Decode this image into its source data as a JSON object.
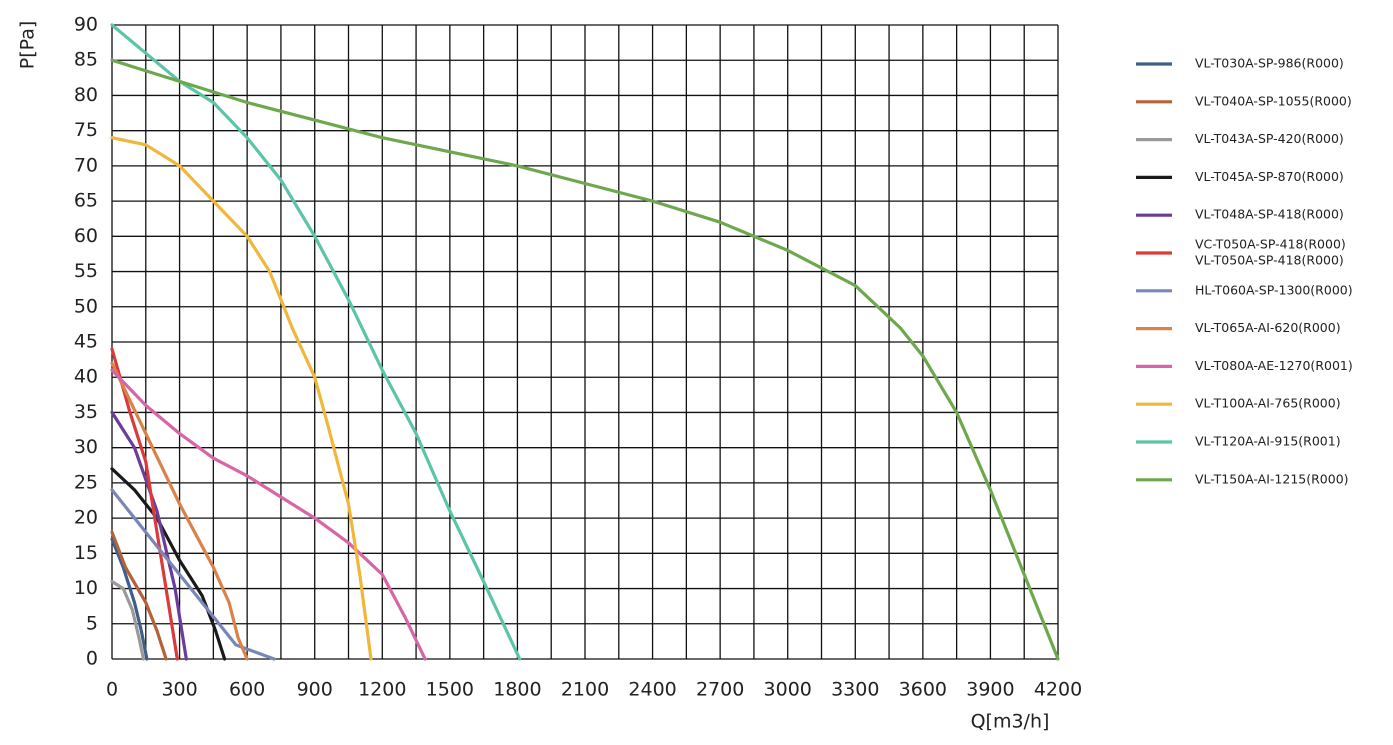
{
  "chart_data": {
    "type": "line",
    "y_label": "P[Pa]",
    "x_label": "Q[m3/h]",
    "xlim": [
      0,
      4200
    ],
    "xticks": [
      0,
      300,
      600,
      900,
      1200,
      1500,
      1800,
      2100,
      2400,
      2700,
      3000,
      3300,
      3600,
      3900,
      4200
    ],
    "x_minor_grid": [
      150,
      450,
      750,
      1050,
      1350,
      1650,
      1950,
      2250,
      2550,
      2850,
      3150,
      3450,
      3750,
      4050
    ],
    "ylim": [
      0,
      90
    ],
    "yticks": [
      0,
      5,
      10,
      15,
      20,
      25,
      30,
      35,
      40,
      45,
      50,
      55,
      60,
      65,
      70,
      75,
      80,
      85,
      90
    ],
    "grid": true,
    "legend": "right",
    "series": [
      {
        "name": [
          "VL-T030A-SP-986(R000)"
        ],
        "color": "#3e5f8a",
        "x": [
          0,
          50,
          100,
          130,
          155
        ],
        "values": [
          17,
          13,
          8,
          4,
          0
        ]
      },
      {
        "name": [
          "VL-T040A-SP-1055(R000)"
        ],
        "color": "#b5623a",
        "x": [
          0,
          60,
          150,
          200,
          240
        ],
        "values": [
          18,
          13,
          8,
          4,
          0
        ]
      },
      {
        "name": [
          "VL-T043A-SP-420(R000)"
        ],
        "color": "#9a9a9a",
        "x": [
          0,
          50,
          90,
          120,
          140
        ],
        "values": [
          11,
          10,
          7,
          3,
          0
        ]
      },
      {
        "name": [
          "VL-T045A-SP-870(R000)"
        ],
        "color": "#1a1a1a",
        "x": [
          0,
          100,
          200,
          300,
          400,
          460,
          500
        ],
        "values": [
          27,
          24,
          20,
          14,
          9,
          4,
          0
        ]
      },
      {
        "name": [
          "VL-T048A-SP-418(R000)"
        ],
        "color": "#6a3d9a",
        "x": [
          0,
          100,
          200,
          280,
          310,
          330
        ],
        "values": [
          35,
          30,
          21,
          10,
          4,
          0
        ]
      },
      {
        "name": [
          "VC-T050A-SP-418(R000)",
          "VL-T050A-SP-418(R000)"
        ],
        "color": "#d93a3a",
        "x": [
          0,
          80,
          150,
          200,
          250,
          290
        ],
        "values": [
          44,
          35,
          28,
          18,
          8,
          0
        ]
      },
      {
        "name": [
          "HL-T060A-SP-1300(R000)"
        ],
        "color": "#7a86b8",
        "x": [
          0,
          150,
          300,
          450,
          550,
          720
        ],
        "values": [
          24,
          18,
          12,
          6,
          2,
          0
        ]
      },
      {
        "name": [
          "VL-T065A-AI-620(R000)"
        ],
        "color": "#d9824a",
        "x": [
          0,
          150,
          300,
          450,
          520,
          560,
          600
        ],
        "values": [
          42,
          32,
          22,
          13,
          8,
          3,
          0
        ]
      },
      {
        "name": [
          "VL-T080A-AE-1270(R001)"
        ],
        "color": "#d765a8",
        "x": [
          0,
          150,
          300,
          450,
          600,
          750,
          900,
          1050,
          1200,
          1300,
          1390
        ],
        "values": [
          41,
          36,
          32,
          28.5,
          26,
          23,
          20,
          16.5,
          12,
          6,
          0
        ]
      },
      {
        "name": [
          "VL-T100A-AI-765(R000)"
        ],
        "color": "#f0b73a",
        "x": [
          0,
          150,
          300,
          450,
          600,
          700,
          800,
          900,
          960,
          1050,
          1100,
          1150
        ],
        "values": [
          74,
          73,
          70,
          65,
          60,
          55,
          47,
          40,
          33,
          22,
          12,
          0
        ]
      },
      {
        "name": [
          "VL-T120A-AI-915(R001)"
        ],
        "color": "#5cc4a8",
        "x": [
          0,
          150,
          300,
          450,
          600,
          750,
          900,
          1050,
          1200,
          1350,
          1500,
          1650,
          1810
        ],
        "values": [
          90,
          86,
          82,
          79,
          74,
          68,
          60,
          51,
          41,
          32,
          21,
          11,
          0
        ]
      },
      {
        "name": [
          "VL-T150A-AI-1215(R000)"
        ],
        "color": "#6ea84e",
        "x": [
          0,
          300,
          600,
          900,
          1200,
          1500,
          1800,
          2100,
          2400,
          2700,
          3000,
          3300,
          3500,
          3600,
          3750,
          3900,
          4050,
          4200
        ],
        "values": [
          85,
          82,
          79,
          76.5,
          74,
          72,
          70,
          67.5,
          65,
          62,
          58,
          53,
          47,
          43,
          35,
          24,
          12,
          0
        ]
      }
    ]
  }
}
